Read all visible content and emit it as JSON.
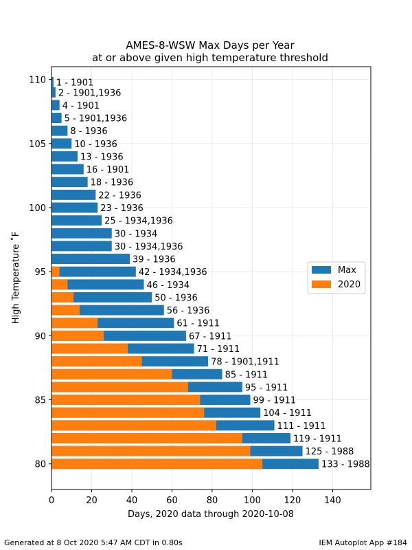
{
  "chart_data": {
    "type": "bar",
    "orientation": "horizontal",
    "title": [
      "AMES-8-WSW Max Days per Year",
      "at or above given high temperature threshold"
    ],
    "xlabel": "Days, 2020 data through 2020-10-08",
    "ylabel": "High Temperature ˚F",
    "xlim": [
      0,
      159
    ],
    "ylim": [
      78,
      111
    ],
    "xticks": [
      0,
      20,
      40,
      60,
      80,
      100,
      120,
      140
    ],
    "yticks": [
      80,
      85,
      90,
      95,
      100,
      105,
      110
    ],
    "grid": true,
    "legend_position": "center-right",
    "y": [
      80,
      81,
      82,
      83,
      84,
      85,
      86,
      87,
      88,
      89,
      90,
      91,
      92,
      93,
      94,
      95,
      96,
      97,
      98,
      99,
      100,
      101,
      102,
      103,
      104,
      105,
      106,
      107,
      108,
      109
    ],
    "series": [
      {
        "name": "Max",
        "color": "#1f77b4",
        "values": [
          133,
          125,
          119,
          111,
          104,
          99,
          95,
          85,
          78,
          71,
          67,
          61,
          56,
          50,
          46,
          42,
          39,
          30,
          30,
          25,
          23,
          22,
          18,
          16,
          13,
          10,
          8,
          5,
          4,
          2
        ]
      },
      {
        "name": "2020",
        "color": "#ff7f0e",
        "values": [
          105,
          99,
          95,
          82,
          76,
          74,
          68,
          60,
          45,
          38,
          26,
          23,
          14,
          11,
          8,
          4,
          0,
          0,
          0,
          0,
          0,
          0,
          0,
          0,
          0,
          0,
          0,
          0,
          0,
          0
        ]
      }
    ],
    "extra_max_bar": {
      "y": 109.8,
      "value": 1,
      "label": "1 - 1901"
    },
    "labels": [
      "133 - 1988",
      "125 - 1988",
      "119 - 1911",
      "111 - 1911",
      "104 - 1911",
      "99 - 1911",
      "95 - 1911",
      "85 - 1911",
      "78 - 1901,1911",
      "71 - 1911",
      "67 - 1911",
      "61 - 1911",
      "56 - 1936",
      "50 - 1936",
      "46 - 1934",
      "42 - 1934,1936",
      "39 - 1936",
      "30 - 1934,1936",
      "30 - 1934",
      "25 - 1934,1936",
      "23 - 1936",
      "22 - 1936",
      "18 - 1936",
      "16 - 1901",
      "13 - 1936",
      "10 - 1936",
      "8 - 1936",
      "5 - 1901,1936",
      "4 - 1901",
      "2 - 1901,1936"
    ]
  },
  "footer": {
    "left": "Generated at 8 Oct 2020 5:47 AM CDT in 0.80s",
    "right": "IEM Autoplot App #184"
  }
}
